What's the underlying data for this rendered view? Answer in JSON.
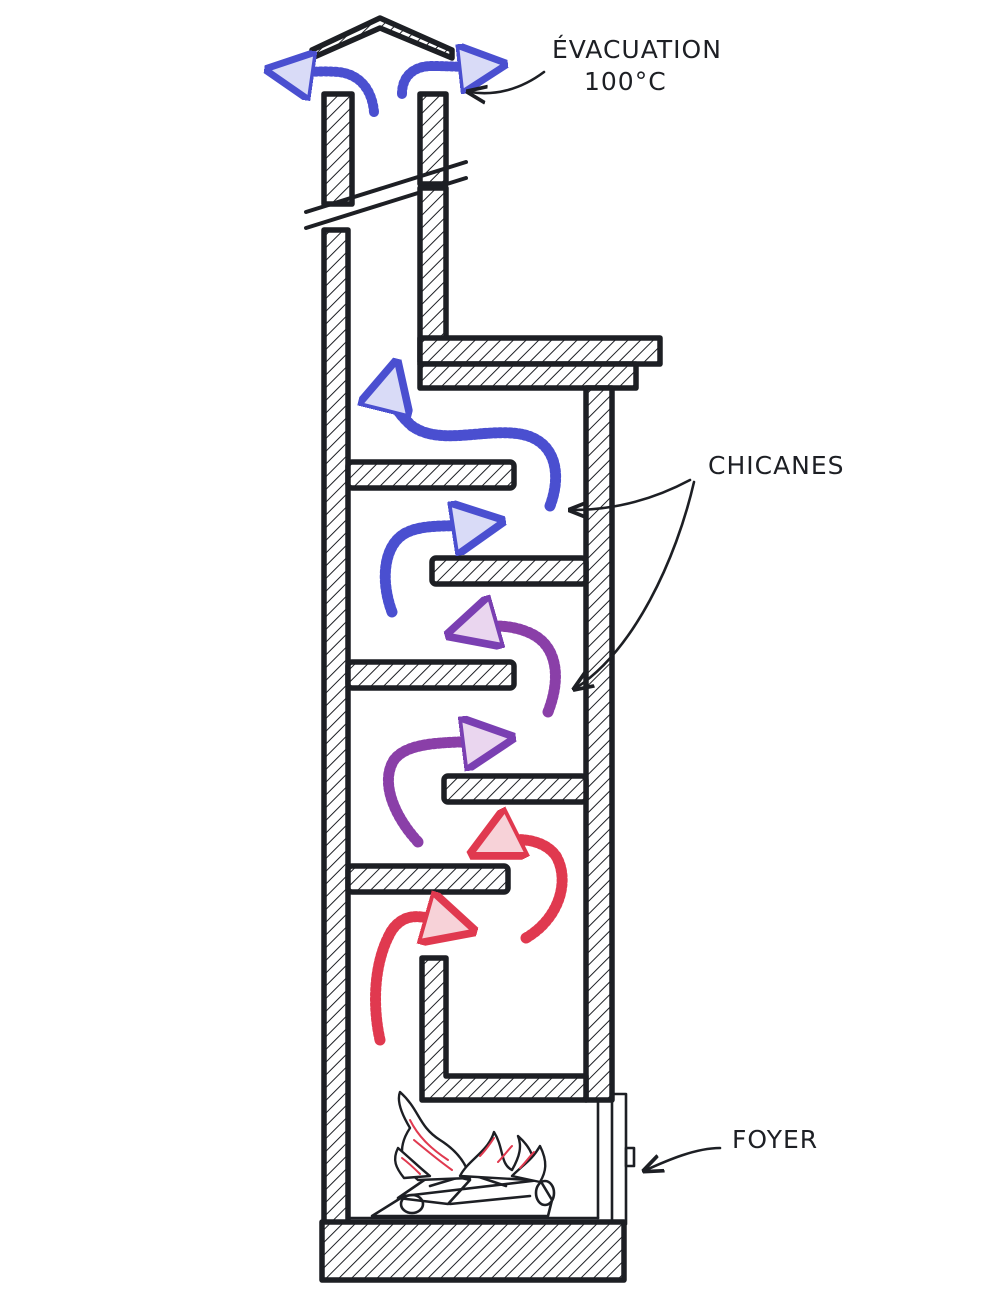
{
  "labels": {
    "evacuation_line1": "ÉVACUATION",
    "evacuation_line2": "100°C",
    "chicanes": "CHICANES",
    "foyer": "FOYER"
  },
  "colors": {
    "ink": "#1d1f24",
    "hot_gas": "#e0394f",
    "cool_gas": "#4a4fd0",
    "flame": "#e0394f"
  }
}
